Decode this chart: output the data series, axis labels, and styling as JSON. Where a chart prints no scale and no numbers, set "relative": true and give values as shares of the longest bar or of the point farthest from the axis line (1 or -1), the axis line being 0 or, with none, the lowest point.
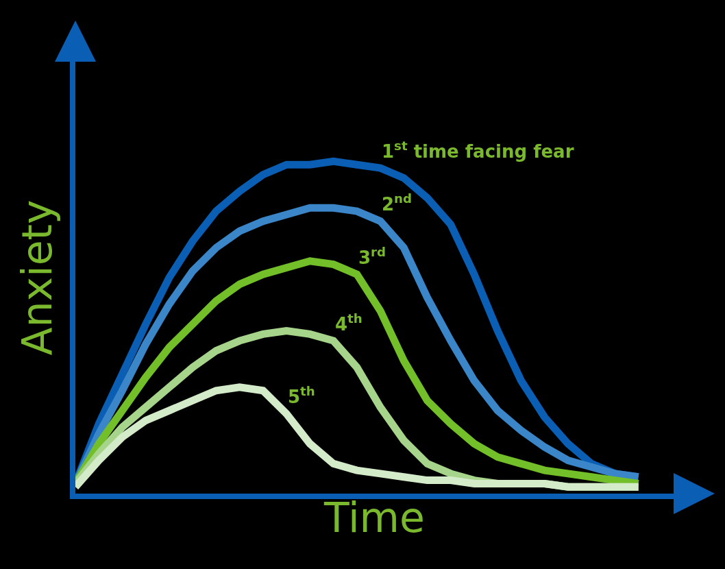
{
  "chart_data": {
    "type": "line",
    "relative": true,
    "xlabel": "Time",
    "ylabel": "Anxiety",
    "legend": false,
    "grid": false,
    "marker": "none",
    "line_style": "solid",
    "categories": [
      null,
      null,
      null,
      null,
      null,
      null,
      null,
      null,
      null,
      null,
      null,
      null,
      null,
      null,
      null,
      null,
      null,
      null,
      null,
      null,
      null,
      null,
      null,
      null,
      null
    ],
    "series": [
      {
        "name": "1$^{st}$ time facing fear",
        "color": "#0a5fb4",
        "values": [
          0.03,
          0.21,
          0.36,
          0.51,
          0.65,
          0.76,
          0.85,
          0.91,
          0.96,
          0.99,
          0.99,
          1.0,
          0.99,
          0.98,
          0.95,
          0.89,
          0.81,
          0.66,
          0.49,
          0.34,
          0.23,
          0.15,
          0.09,
          0.06,
          0.05
        ]
      },
      {
        "name": "2$^{nd}$",
        "color": "#3a86c8",
        "values": [
          0.03,
          0.18,
          0.31,
          0.45,
          0.57,
          0.67,
          0.74,
          0.79,
          0.82,
          0.84,
          0.86,
          0.86,
          0.85,
          0.82,
          0.74,
          0.59,
          0.46,
          0.34,
          0.25,
          0.19,
          0.14,
          0.1,
          0.08,
          0.06,
          0.05
        ]
      },
      {
        "name": "3$^{rd}$",
        "color": "#72bf2a",
        "values": [
          0.03,
          0.15,
          0.25,
          0.35,
          0.44,
          0.51,
          0.58,
          0.63,
          0.66,
          0.68,
          0.7,
          0.69,
          0.66,
          0.55,
          0.4,
          0.28,
          0.21,
          0.15,
          0.11,
          0.09,
          0.07,
          0.06,
          0.05,
          0.04,
          0.03
        ]
      },
      {
        "name": "4$^{th}$",
        "color": "#a6d48a",
        "values": [
          0.03,
          0.12,
          0.2,
          0.26,
          0.32,
          0.38,
          0.43,
          0.46,
          0.48,
          0.49,
          0.48,
          0.46,
          0.38,
          0.26,
          0.16,
          0.09,
          0.06,
          0.04,
          0.03,
          0.03,
          0.03,
          0.02,
          0.02,
          0.02,
          0.02
        ]
      },
      {
        "name": "5$^{th}$",
        "color": "#d3ebc8",
        "values": [
          0.02,
          0.1,
          0.17,
          0.22,
          0.25,
          0.28,
          0.31,
          0.32,
          0.31,
          0.24,
          0.15,
          0.09,
          0.07,
          0.06,
          0.05,
          0.04,
          0.04,
          0.03,
          0.03,
          0.03,
          0.03,
          0.02,
          0.02,
          0.02,
          0.02
        ]
      }
    ]
  }
}
